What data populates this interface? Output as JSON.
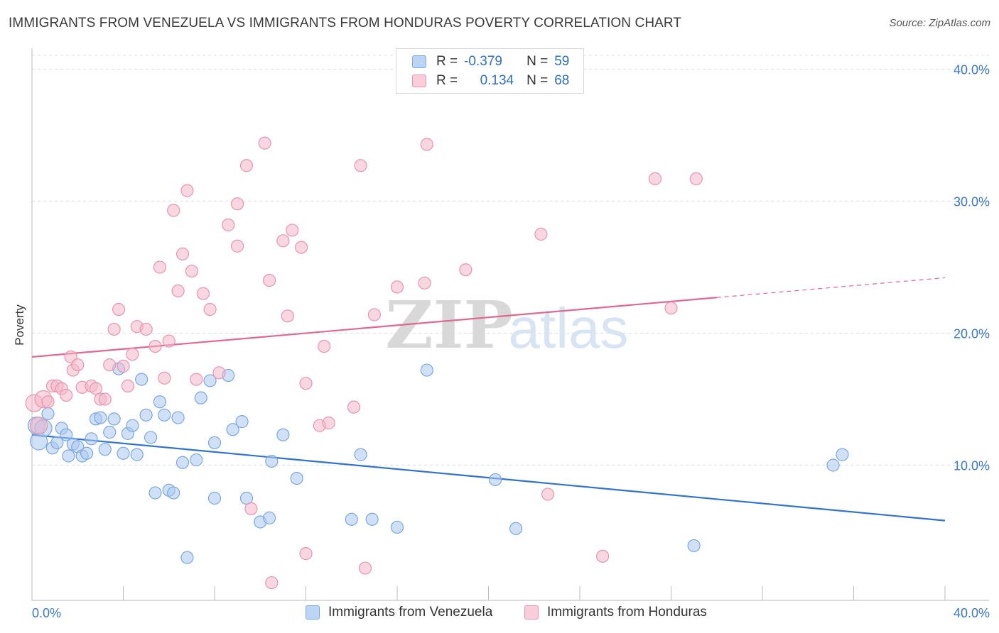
{
  "title": "IMMIGRANTS FROM VENEZUELA VS IMMIGRANTS FROM HONDURAS POVERTY CORRELATION CHART",
  "source": "Source: ZipAtlas.com",
  "watermark": {
    "zip": "ZIP",
    "atlas": "atlas"
  },
  "legend": {
    "row1": {
      "r_label": "R =",
      "r_value": "-0.379",
      "n_label": "N =",
      "n_value": "59"
    },
    "row2": {
      "r_label": "R =",
      "r_value": "0.134",
      "n_label": "N =",
      "n_value": "68"
    }
  },
  "colors": {
    "blue_fill": "#a9c8f0",
    "blue_stroke": "#7aa8e0",
    "blue_line": "#2f72d0",
    "pink_fill": "#f4b6c8",
    "pink_stroke": "#e895b0",
    "pink_line": "#e06890",
    "axis_text": "#3a78c9",
    "grid": "#dddddd"
  },
  "chart_data": {
    "type": "scatter",
    "title": "IMMIGRANTS FROM VENEZUELA VS IMMIGRANTS FROM HONDURAS POVERTY CORRELATION CHART",
    "xlabel": "",
    "ylabel": "Poverty",
    "xlim": [
      0,
      40
    ],
    "ylim": [
      0,
      40
    ],
    "x_tick_labels": [
      "0.0%",
      "40.0%"
    ],
    "y_ticks": [
      10,
      20,
      30,
      40
    ],
    "y_tick_labels": [
      "10.0%",
      "20.0%",
      "30.0%",
      "40.0%"
    ],
    "grid": true,
    "legend_position": "top-center",
    "series": [
      {
        "name": "Immigrants from Venezuela",
        "color": "#a9c8f0",
        "trend": {
          "x": [
            0,
            40
          ],
          "y": [
            12.3,
            5.8
          ],
          "solid_until": 40
        },
        "points": [
          [
            0.2,
            13.0
          ],
          [
            0.3,
            11.8
          ],
          [
            0.5,
            12.8
          ],
          [
            0.7,
            13.9
          ],
          [
            0.9,
            11.3
          ],
          [
            1.1,
            11.7
          ],
          [
            1.3,
            12.8
          ],
          [
            1.5,
            12.3
          ],
          [
            1.6,
            10.7
          ],
          [
            1.8,
            11.6
          ],
          [
            2.0,
            11.4
          ],
          [
            2.2,
            10.7
          ],
          [
            2.4,
            10.9
          ],
          [
            2.6,
            12.0
          ],
          [
            2.8,
            13.5
          ],
          [
            3.0,
            13.6
          ],
          [
            3.2,
            11.2
          ],
          [
            3.4,
            12.5
          ],
          [
            3.6,
            13.5
          ],
          [
            3.8,
            17.3
          ],
          [
            4.0,
            10.9
          ],
          [
            4.2,
            12.4
          ],
          [
            4.4,
            13.0
          ],
          [
            4.6,
            10.8
          ],
          [
            4.8,
            16.5
          ],
          [
            5.0,
            13.8
          ],
          [
            5.2,
            12.1
          ],
          [
            5.4,
            7.9
          ],
          [
            5.6,
            14.8
          ],
          [
            5.8,
            13.8
          ],
          [
            6.0,
            8.1
          ],
          [
            6.2,
            7.9
          ],
          [
            6.4,
            13.6
          ],
          [
            6.6,
            10.2
          ],
          [
            6.8,
            3.0
          ],
          [
            7.2,
            10.4
          ],
          [
            7.4,
            15.1
          ],
          [
            7.8,
            16.4
          ],
          [
            8.0,
            7.5
          ],
          [
            8.0,
            11.7
          ],
          [
            8.6,
            16.8
          ],
          [
            8.8,
            12.7
          ],
          [
            9.2,
            13.3
          ],
          [
            9.4,
            7.5
          ],
          [
            10.0,
            5.7
          ],
          [
            10.4,
            6.0
          ],
          [
            10.5,
            10.3
          ],
          [
            11.0,
            12.3
          ],
          [
            11.6,
            9.0
          ],
          [
            14.0,
            5.9
          ],
          [
            14.4,
            10.8
          ],
          [
            14.9,
            5.9
          ],
          [
            16.0,
            5.3
          ],
          [
            17.3,
            17.2
          ],
          [
            20.3,
            8.9
          ],
          [
            21.2,
            5.2
          ],
          [
            29.0,
            3.9
          ],
          [
            35.1,
            10.0
          ],
          [
            35.5,
            10.8
          ]
        ]
      },
      {
        "name": "Immigrants from Honduras",
        "color": "#f4b6c8",
        "trend": {
          "x": [
            0,
            40
          ],
          "y": [
            18.2,
            24.2
          ],
          "solid_until": 30
        },
        "points": [
          [
            0.1,
            14.7
          ],
          [
            0.3,
            13.0
          ],
          [
            0.5,
            15.0
          ],
          [
            0.7,
            14.8
          ],
          [
            0.9,
            16.0
          ],
          [
            1.1,
            16.0
          ],
          [
            1.3,
            15.8
          ],
          [
            1.5,
            15.3
          ],
          [
            1.7,
            18.2
          ],
          [
            1.8,
            17.2
          ],
          [
            2.0,
            17.6
          ],
          [
            2.2,
            15.9
          ],
          [
            2.6,
            16.0
          ],
          [
            2.8,
            15.8
          ],
          [
            3.0,
            15.0
          ],
          [
            3.2,
            15.0
          ],
          [
            3.4,
            17.6
          ],
          [
            3.6,
            20.3
          ],
          [
            3.8,
            21.8
          ],
          [
            4.0,
            17.5
          ],
          [
            4.2,
            16.0
          ],
          [
            4.4,
            18.4
          ],
          [
            4.6,
            20.5
          ],
          [
            5.0,
            20.3
          ],
          [
            5.4,
            19.0
          ],
          [
            5.6,
            25.0
          ],
          [
            5.8,
            16.6
          ],
          [
            6.0,
            19.4
          ],
          [
            6.2,
            29.3
          ],
          [
            6.4,
            23.2
          ],
          [
            6.6,
            26.0
          ],
          [
            6.8,
            30.8
          ],
          [
            7.0,
            24.7
          ],
          [
            7.2,
            16.5
          ],
          [
            7.5,
            23.0
          ],
          [
            7.8,
            21.8
          ],
          [
            8.2,
            17.0
          ],
          [
            8.6,
            28.2
          ],
          [
            9.0,
            29.8
          ],
          [
            9.0,
            26.6
          ],
          [
            9.4,
            32.7
          ],
          [
            9.6,
            6.7
          ],
          [
            10.2,
            34.4
          ],
          [
            10.4,
            24.0
          ],
          [
            10.5,
            1.1
          ],
          [
            11.0,
            27.0
          ],
          [
            11.2,
            21.3
          ],
          [
            11.4,
            27.8
          ],
          [
            11.8,
            26.5
          ],
          [
            12.0,
            16.2
          ],
          [
            12.0,
            3.3
          ],
          [
            12.6,
            13.0
          ],
          [
            12.8,
            19.0
          ],
          [
            13.0,
            13.2
          ],
          [
            14.1,
            14.4
          ],
          [
            14.4,
            32.7
          ],
          [
            14.6,
            2.2
          ],
          [
            15.0,
            21.4
          ],
          [
            16.0,
            23.5
          ],
          [
            17.2,
            23.8
          ],
          [
            17.3,
            34.3
          ],
          [
            19.0,
            24.8
          ],
          [
            22.3,
            27.5
          ],
          [
            22.6,
            7.8
          ],
          [
            25.0,
            3.1
          ],
          [
            27.3,
            31.7
          ],
          [
            28.0,
            21.9
          ],
          [
            29.1,
            31.7
          ]
        ]
      }
    ]
  }
}
